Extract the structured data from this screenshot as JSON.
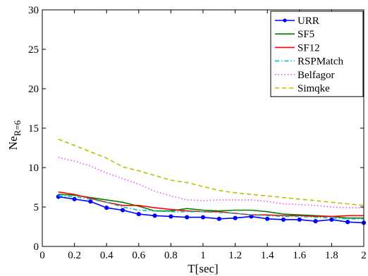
{
  "chart_data": {
    "type": "line",
    "title": "",
    "xlabel": "T[sec]",
    "ylabel_main": "Ne",
    "ylabel_sub": "R=6",
    "xlim": [
      0,
      2
    ],
    "ylim": [
      0,
      30
    ],
    "xticks": [
      0,
      0.2,
      0.4,
      0.6,
      0.8,
      1,
      1.2,
      1.4,
      1.6,
      1.8,
      2
    ],
    "xtick_labels": [
      "0",
      "0.2",
      "0.4",
      "0.6",
      "0.8",
      "1",
      "1.2",
      "1.4",
      "1.6",
      "1.8",
      "2"
    ],
    "yticks": [
      0,
      5,
      10,
      15,
      20,
      25,
      30
    ],
    "ytick_labels": [
      "0",
      "5",
      "10",
      "15",
      "20",
      "25",
      "30"
    ],
    "grid": false,
    "legend_position": "top-right",
    "x": [
      0.1,
      0.2,
      0.3,
      0.4,
      0.5,
      0.6,
      0.7,
      0.8,
      0.9,
      1.0,
      1.1,
      1.2,
      1.3,
      1.4,
      1.5,
      1.6,
      1.7,
      1.8,
      1.9,
      2.0
    ],
    "series": [
      {
        "name": "URR",
        "color": "#0000ff",
        "style": "solid-marker",
        "values": [
          6.3,
          6.0,
          5.7,
          4.9,
          4.6,
          4.1,
          3.9,
          3.8,
          3.7,
          3.7,
          3.5,
          3.6,
          3.8,
          3.5,
          3.4,
          3.4,
          3.2,
          3.4,
          3.1,
          3.0
        ]
      },
      {
        "name": "SF5",
        "color": "#008000",
        "style": "solid",
        "values": [
          6.6,
          6.5,
          6.2,
          5.9,
          5.6,
          5.1,
          4.5,
          4.5,
          4.8,
          4.6,
          4.5,
          4.6,
          4.6,
          4.4,
          4.1,
          4.0,
          3.9,
          3.8,
          3.6,
          3.6
        ]
      },
      {
        "name": "SF12",
        "color": "#ff0000",
        "style": "solid",
        "values": [
          6.9,
          6.6,
          6.1,
          5.6,
          5.2,
          5.2,
          4.9,
          4.7,
          4.5,
          4.4,
          4.4,
          4.2,
          4.0,
          4.0,
          3.9,
          3.9,
          3.8,
          3.8,
          3.9,
          3.9
        ]
      },
      {
        "name": "RSPMatch",
        "color": "#00bfbf",
        "style": "dashdot",
        "values": [
          6.4,
          6.3,
          6.0,
          5.6,
          5.0,
          4.6,
          4.5,
          4.4,
          4.4,
          4.4,
          4.3,
          4.2,
          4.0,
          3.9,
          3.8,
          3.8,
          3.7,
          3.6,
          3.5,
          3.5
        ]
      },
      {
        "name": "Belfagor",
        "color": "#ff44ff",
        "style": "dotted",
        "values": [
          11.3,
          10.8,
          10.2,
          9.3,
          8.6,
          7.9,
          7.0,
          6.4,
          5.9,
          5.8,
          5.9,
          5.9,
          5.9,
          5.7,
          5.4,
          5.3,
          5.2,
          5.0,
          4.9,
          4.9
        ]
      },
      {
        "name": "Simqke",
        "color": "#bfbf00",
        "style": "dashed",
        "values": [
          13.6,
          12.8,
          12.0,
          11.2,
          10.1,
          9.6,
          9.0,
          8.4,
          8.1,
          7.6,
          7.1,
          6.8,
          6.6,
          6.4,
          6.2,
          6.0,
          5.8,
          5.6,
          5.4,
          5.2
        ]
      }
    ]
  }
}
